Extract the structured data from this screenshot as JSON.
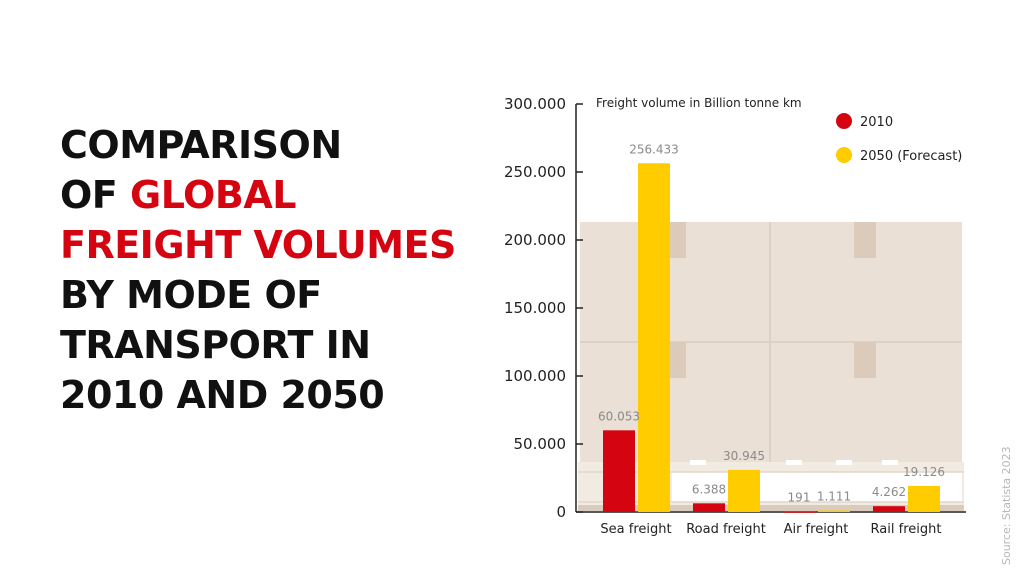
{
  "headline": {
    "line1": "COMPARISON",
    "line2_prefix": "OF ",
    "line2_highlight": "GLOBAL",
    "line3_highlight": "FREIGHT VOLUMES",
    "line4": "BY MODE OF",
    "line5": "TRANSPORT IN",
    "line6": "2010 AND 2050"
  },
  "source": "Source: Statista 2023",
  "colors": {
    "accent_red": "#d40511",
    "accent_yellow": "#ffcc00",
    "text": "#111111",
    "muted": "#8a8a8a"
  },
  "chart_data": {
    "type": "bar",
    "unit_label": "Freight volume in Billion tonne km",
    "categories": [
      "Sea freight",
      "Road freight",
      "Air freight",
      "Rail freight"
    ],
    "series": [
      {
        "name": "2010",
        "color": "#d40511",
        "values": [
          60053,
          6388,
          191,
          4262
        ],
        "labels": [
          "60.053",
          "6.388",
          "191",
          "4.262"
        ]
      },
      {
        "name": "2050 (Forecast)",
        "color": "#ffcc00",
        "values": [
          256433,
          30945,
          1111,
          19126
        ],
        "labels": [
          "256.433",
          "30.945",
          "1.111",
          "19.126"
        ]
      }
    ],
    "ylim": [
      0,
      300000
    ],
    "yticks": [
      0,
      50000,
      100000,
      150000,
      200000,
      250000,
      300000
    ],
    "ytick_labels": [
      "0",
      "50.000",
      "100.000",
      "150.000",
      "200.000",
      "250.000",
      "300.000"
    ],
    "legend_position": "top-right",
    "grid": false
  }
}
